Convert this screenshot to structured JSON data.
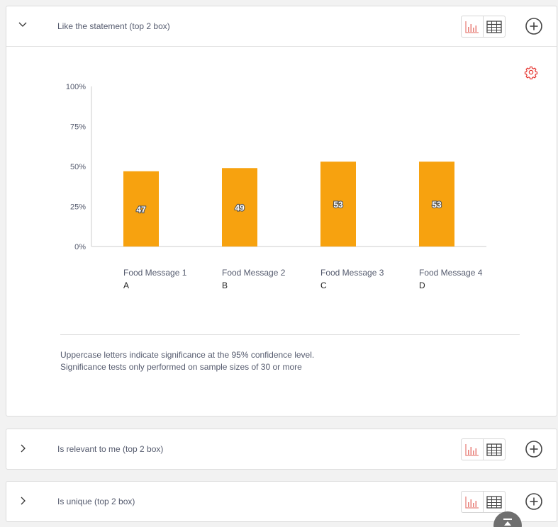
{
  "icons": {
    "chevron_open": "chevron-down-icon",
    "chevron_closed": "chevron-right-icon",
    "chart_view": "bar-chart-icon",
    "table_view": "table-icon",
    "add": "plus-circle-icon",
    "settings": "gear-icon",
    "scroll_top": "arrow-up-icon"
  },
  "colors": {
    "bar": "#f7a20f",
    "chart_icon": "#e8837c",
    "gear": "#e5302b",
    "text": "#555b6e"
  },
  "questions": [
    {
      "title": "Like the statement (top 2 box)",
      "expanded": true
    },
    {
      "title": "Is relevant to me (top 2 box)",
      "expanded": false
    },
    {
      "title": "Is unique (top 2 box)",
      "expanded": false
    }
  ],
  "chart_data": {
    "type": "bar",
    "categories": [
      "Food Message 1",
      "Food Message 2",
      "Food Message 3",
      "Food Message 4"
    ],
    "sig_letters": [
      "A",
      "B",
      "C",
      "D"
    ],
    "values": [
      47,
      49,
      53,
      53
    ],
    "data_labels": [
      "47",
      "49",
      "53",
      "53"
    ],
    "y_ticks": [
      "100%",
      "75%",
      "50%",
      "25%",
      "0%"
    ],
    "ylim": [
      0,
      100
    ],
    "grid": false,
    "legend": "none"
  },
  "footnotes": {
    "line1": "Uppercase letters indicate significance at the 95% confidence level.",
    "line2": "Significance tests only performed on sample sizes of 30 or more"
  }
}
